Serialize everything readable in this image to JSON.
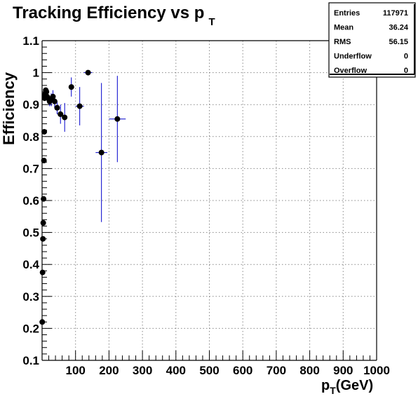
{
  "chart_data": {
    "type": "scatter",
    "title": {
      "main": "Tracking Efficiency vs p",
      "sub": "T"
    },
    "xlabel": {
      "main": "p",
      "sub": "T",
      "rest": "(GeV)"
    },
    "ylabel": "Efficiency",
    "xlim": [
      0,
      1000
    ],
    "ylim": [
      0.1,
      1.1
    ],
    "grid": true,
    "x_ticks": [
      "100",
      "200",
      "300",
      "400",
      "500",
      "600",
      "700",
      "800",
      "900",
      "1000"
    ],
    "y_ticks": [
      "0.1",
      "0.2",
      "0.3",
      "0.4",
      "0.5",
      "0.6",
      "0.7",
      "0.8",
      "0.9",
      "1",
      "1.1"
    ],
    "stats_box": {
      "placement": "top-right",
      "rows": [
        {
          "label": "Entries",
          "value": "117971"
        },
        {
          "label": "Mean",
          "value": "36.24"
        },
        {
          "label": "RMS",
          "value": "56.15"
        },
        {
          "label": "Underflow",
          "value": "0"
        },
        {
          "label": "Overflow",
          "value": "0"
        }
      ]
    },
    "points": [
      {
        "x": 0.5,
        "y": 0.22,
        "xerr": 0.5,
        "yerr": 0
      },
      {
        "x": 1.5,
        "y": 0.375,
        "xerr": 0.5,
        "yerr": 0
      },
      {
        "x": 2.5,
        "y": 0.48,
        "xerr": 0.5,
        "yerr": 0
      },
      {
        "x": 3.5,
        "y": 0.53,
        "xerr": 0.5,
        "yerr": 0
      },
      {
        "x": 4.5,
        "y": 0.605,
        "xerr": 0.5,
        "yerr": 0
      },
      {
        "x": 5.5,
        "y": 0.725,
        "xerr": 0.5,
        "yerr": 0
      },
      {
        "x": 6.5,
        "y": 0.815,
        "xerr": 0.5,
        "yerr": 0
      },
      {
        "x": 7.5,
        "y": 0.92,
        "xerr": 0.5,
        "yerr": 0
      },
      {
        "x": 8.5,
        "y": 0.93,
        "xerr": 0.5,
        "yerr": 0
      },
      {
        "x": 9.5,
        "y": 0.935,
        "xerr": 0.5,
        "yerr": 0
      },
      {
        "x": 11,
        "y": 0.945,
        "xerr": 1,
        "yerr": 0
      },
      {
        "x": 13,
        "y": 0.94,
        "xerr": 1,
        "yerr": 0
      },
      {
        "x": 15,
        "y": 0.925,
        "xerr": 1,
        "yerr": 0
      },
      {
        "x": 17.5,
        "y": 0.92,
        "xerr": 1.5,
        "yerr": 0.01
      },
      {
        "x": 22.5,
        "y": 0.91,
        "xerr": 2.5,
        "yerr": 0.015
      },
      {
        "x": 27.5,
        "y": 0.915,
        "xerr": 2.5,
        "yerr": 0.02
      },
      {
        "x": 32.5,
        "y": 0.925,
        "xerr": 2.5,
        "yerr": 0.02
      },
      {
        "x": 37.5,
        "y": 0.91,
        "xerr": 2.5,
        "yerr": 0.02
      },
      {
        "x": 45,
        "y": 0.89,
        "xerr": 5,
        "yerr": 0.02
      },
      {
        "x": 55,
        "y": 0.87,
        "xerr": 5,
        "yerr": 0.03
      },
      {
        "x": 67.5,
        "y": 0.86,
        "xerr": 7.5,
        "yerr": 0.045
      },
      {
        "x": 87.5,
        "y": 0.955,
        "xerr": 7.5,
        "yerr": 0.03
      },
      {
        "x": 112.5,
        "y": 0.895,
        "xerr": 12.5,
        "yerr": 0.06
      },
      {
        "x": 137.5,
        "y": 1.0,
        "xerr": 12.5,
        "yerr": 0
      },
      {
        "x": 177.5,
        "y": 0.75,
        "xerr": 17.5,
        "yerr": 0.2175
      },
      {
        "x": 225,
        "y": 0.855,
        "xerr": 25,
        "yerr": 0.135
      }
    ],
    "colors": {
      "marker": "#000000",
      "error_bar": "#0000cc",
      "axis": "#000000",
      "grid": "#888888",
      "background": "#ffffff"
    }
  }
}
